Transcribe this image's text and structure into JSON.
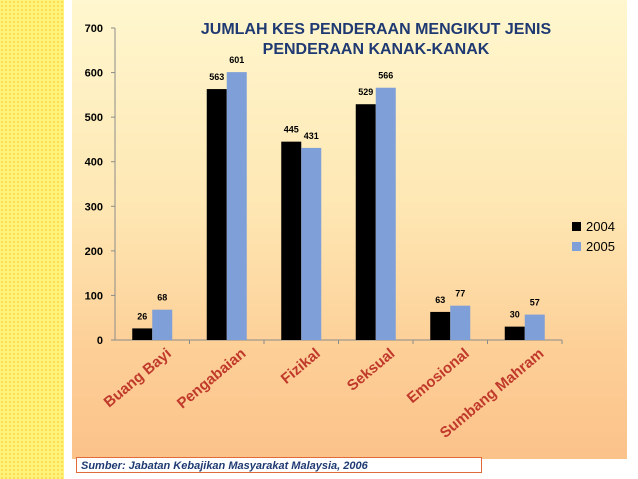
{
  "chart_data": {
    "type": "bar",
    "title": "JUMLAH KES PENDERAAN MENGIKUT JENIS PENDERAAN KANAK-KANAK",
    "title_lines": [
      "JUMLAH KES PENDERAAN MENGIKUT JENIS",
      "PENDERAAN KANAK-KANAK"
    ],
    "categories": [
      "Buang Bayi",
      "Pengabaian",
      "Fizikal",
      "Seksual",
      "Emosional",
      "Sumbang Mahram"
    ],
    "series": [
      {
        "name": "2004",
        "values": [
          26,
          563,
          445,
          529,
          63,
          30
        ],
        "color": "#000000"
      },
      {
        "name": "2005",
        "values": [
          68,
          601,
          431,
          566,
          77,
          57
        ],
        "color": "#7f9fd9"
      }
    ],
    "ylim": [
      0,
      700
    ],
    "yticks": [
      "0",
      "100",
      "200",
      "300",
      "400",
      "500",
      "600",
      "700"
    ],
    "legend_position": "right",
    "grid": false
  },
  "source": "Sumber: Jabatan Kebajikan Masyarakat Malaysia, 2006",
  "colors": {
    "title": "#1f3a73",
    "strip": "#fff27a"
  }
}
